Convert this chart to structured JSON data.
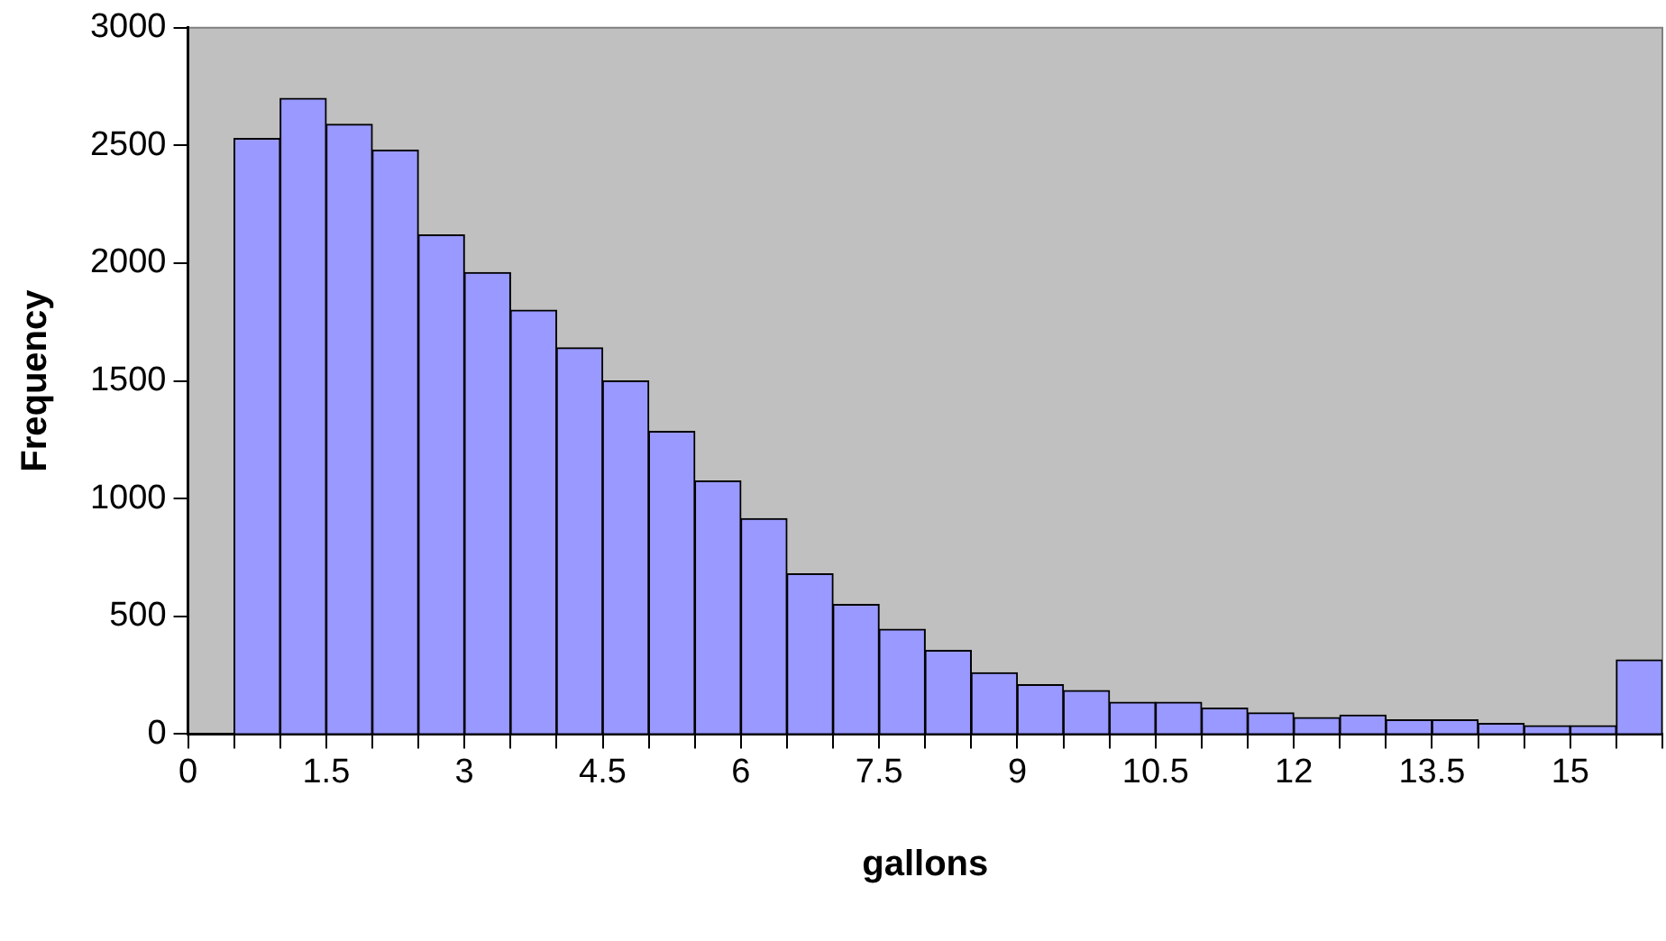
{
  "chart_data": {
    "type": "histogram",
    "xlabel": "gallons",
    "ylabel": "Frequency",
    "color": "#9999ff",
    "bins": [
      0,
      0.5,
      1,
      1.5,
      2,
      2.5,
      3,
      3.5,
      4,
      4.5,
      5,
      5.5,
      6,
      6.5,
      7,
      7.5,
      8,
      8.5,
      9,
      9.5,
      10,
      10.5,
      11,
      11.5,
      12,
      12.5,
      13,
      13.5,
      14,
      14.5,
      15,
      15.5,
      16
    ],
    "values": [
      0,
      2530,
      2700,
      2590,
      2480,
      2120,
      1960,
      1800,
      1640,
      1500,
      1285,
      1075,
      915,
      680,
      550,
      445,
      355,
      260,
      210,
      185,
      135,
      135,
      110,
      90,
      70,
      80,
      60,
      60,
      45,
      35,
      35,
      315
    ],
    "xlim": [
      0,
      16
    ],
    "xticks": [
      0,
      {
        "value": 0.5,
        "label": null
      },
      {
        "value": 1,
        "label": null
      },
      1.5,
      {
        "value": 2,
        "label": null
      },
      {
        "value": 2.5,
        "label": null
      },
      3,
      {
        "value": 3.5,
        "label": null
      },
      {
        "value": 4,
        "label": null
      },
      4.5,
      {
        "value": 5,
        "label": null
      },
      {
        "value": 5.5,
        "label": null
      },
      6,
      {
        "value": 6.5,
        "label": null
      },
      {
        "value": 7,
        "label": null
      },
      7.5,
      {
        "value": 8,
        "label": null
      },
      {
        "value": 8.5,
        "label": null
      },
      9,
      {
        "value": 9.5,
        "label": null
      },
      {
        "value": 10,
        "label": null
      },
      10.5,
      {
        "value": 11,
        "label": null
      },
      {
        "value": 11.5,
        "label": null
      },
      12,
      {
        "value": 12.5,
        "label": null
      },
      {
        "value": 13,
        "label": null
      },
      13.5,
      {
        "value": 14,
        "label": null
      },
      {
        "value": 14.5,
        "label": null
      },
      15,
      {
        "value": 15.5,
        "label": null
      },
      {
        "value": 16,
        "label": null
      }
    ],
    "ylim": [
      0,
      3000
    ],
    "yticks": [
      0,
      500,
      1000,
      1500,
      2000,
      2500,
      3000
    ],
    "grid": false,
    "legend": false
  }
}
